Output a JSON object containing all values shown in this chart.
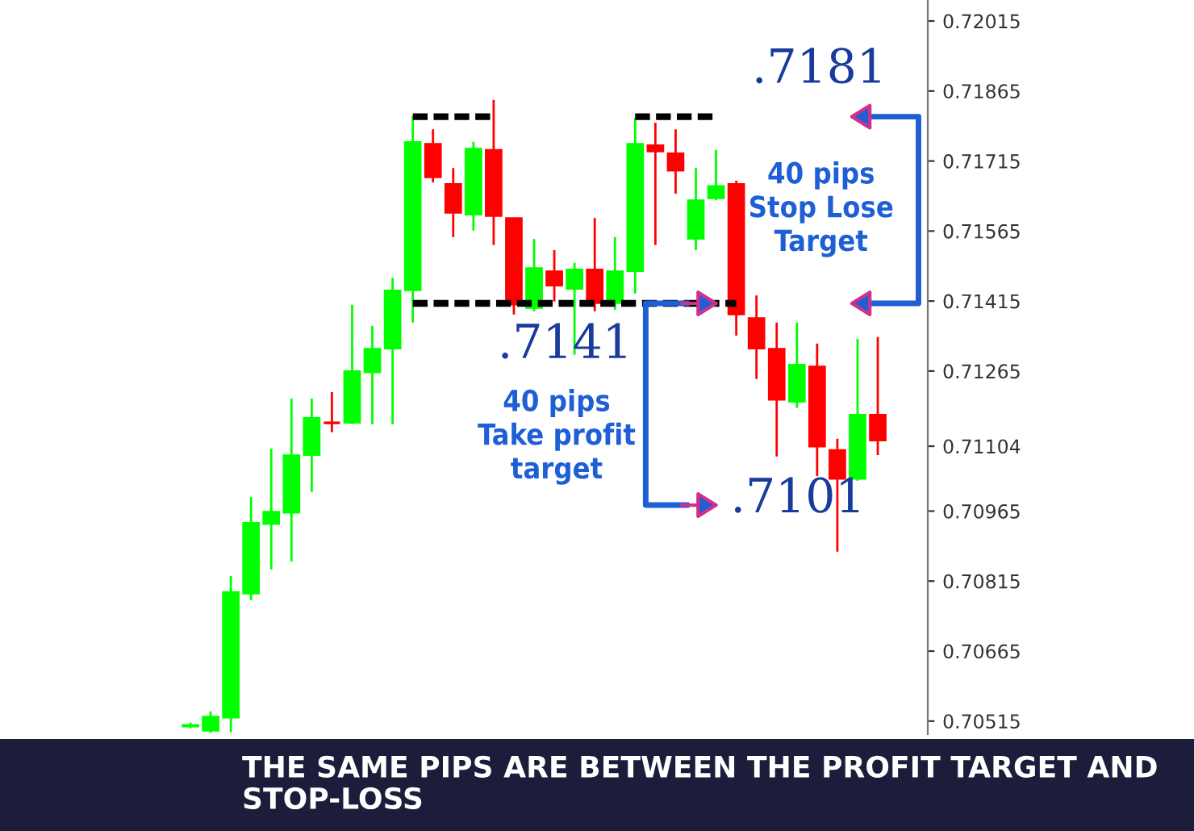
{
  "chart_data": {
    "type": "candlestick",
    "title": "THE SAME PIPS ARE BETWEEN THE PROFIT TARGET AND STOP-LOSS",
    "categories": [
      null,
      null,
      null,
      null,
      null,
      null,
      null,
      null,
      null,
      null,
      null,
      null,
      null,
      null,
      null,
      null,
      null,
      null,
      null,
      null,
      null,
      null,
      null,
      null,
      null,
      null,
      null,
      null,
      null,
      null,
      null,
      null,
      null,
      null,
      null
    ],
    "ohlc": [
      [
        0.70503,
        0.70512,
        0.705,
        0.70507
      ],
      [
        0.70494,
        0.70536,
        0.7049,
        0.70525
      ],
      [
        0.70522,
        0.70826,
        0.70491,
        0.70792
      ],
      [
        0.70788,
        0.70995,
        0.70774,
        0.7094
      ],
      [
        0.70937,
        0.71099,
        0.7084,
        0.70964
      ],
      [
        0.70961,
        0.71206,
        0.70857,
        0.71085
      ],
      [
        0.71085,
        0.71206,
        0.71006,
        0.71165
      ],
      [
        0.71154,
        0.7122,
        0.71134,
        0.71154
      ],
      [
        0.71154,
        0.71407,
        0.71151,
        0.71265
      ],
      [
        0.71262,
        0.71362,
        0.71151,
        0.71313
      ],
      [
        0.71313,
        0.71465,
        0.71151,
        0.71438
      ],
      [
        0.71438,
        0.71811,
        0.71369,
        0.71756
      ],
      [
        0.71752,
        0.71783,
        0.71669,
        0.7168
      ],
      [
        0.71666,
        0.717,
        0.71552,
        0.71604
      ],
      [
        0.716,
        0.71756,
        0.71566,
        0.71742
      ],
      [
        0.71739,
        0.71846,
        0.71535,
        0.71597
      ],
      [
        0.71593,
        0.71593,
        0.71386,
        0.71407
      ],
      [
        0.714,
        0.71548,
        0.71393,
        0.71486
      ],
      [
        0.71479,
        0.71524,
        0.71414,
        0.71448
      ],
      [
        0.71441,
        0.71497,
        0.713,
        0.71483
      ],
      [
        0.71483,
        0.71593,
        0.71393,
        0.7141
      ],
      [
        0.7141,
        0.71552,
        0.71396,
        0.71479
      ],
      [
        0.71479,
        0.71808,
        0.71431,
        0.71752
      ],
      [
        0.71749,
        0.71797,
        0.71535,
        0.71735
      ],
      [
        0.71732,
        0.71783,
        0.71645,
        0.71694
      ],
      [
        0.71548,
        0.717,
        0.71524,
        0.71631
      ],
      [
        0.71635,
        0.71739,
        0.71631,
        0.71662
      ],
      [
        0.71666,
        0.71673,
        0.71341,
        0.71386
      ],
      [
        0.71379,
        0.71427,
        0.71248,
        0.71313
      ],
      [
        0.71313,
        0.71369,
        0.71082,
        0.71203
      ],
      [
        0.71199,
        0.71369,
        0.71186,
        0.71279
      ],
      [
        0.71275,
        0.71324,
        0.7104,
        0.71103
      ],
      [
        0.71096,
        0.7112,
        0.70878,
        0.71034
      ],
      [
        0.71034,
        0.71334,
        0.7103,
        0.71172
      ],
      [
        0.71172,
        0.71338,
        0.71085,
        0.71116
      ]
    ],
    "colors": [
      "#00ff00",
      "#00ff00",
      "#00ff00",
      "#00ff00",
      "#00ff00",
      "#00ff00",
      "#00ff00",
      "#ff0000",
      "#00ff00",
      "#00ff00",
      "#00ff00",
      "#00ff00",
      "#ff0000",
      "#ff0000",
      "#00ff00",
      "#ff0000",
      "#ff0000",
      "#00ff00",
      "#ff0000",
      "#00ff00",
      "#ff0000",
      "#00ff00",
      "#00ff00",
      "#ff0000",
      "#ff0000",
      "#00ff00",
      "#00ff00",
      "#ff0000",
      "#ff0000",
      "#ff0000",
      "#00ff00",
      "#ff0000",
      "#ff0000",
      "#00ff00",
      "#ff0000"
    ],
    "series": [
      {
        "type": "line",
        "color": "#000000",
        "line_style": "dashed",
        "values": [
          null,
          null,
          null,
          null,
          null,
          null,
          null,
          null,
          null,
          null,
          null,
          0.7181,
          0.7181,
          0.7181,
          0.7181,
          0.7181,
          null,
          null,
          null,
          null,
          null,
          null,
          0.7181,
          0.7181,
          0.7181,
          0.7181,
          0.7181,
          null,
          null,
          null,
          null,
          null,
          null,
          null,
          null
        ]
      },
      {
        "type": "line",
        "color": "#000000",
        "line_style": "dashed",
        "values": [
          null,
          null,
          null,
          null,
          null,
          null,
          null,
          null,
          null,
          null,
          null,
          0.7141,
          0.7141,
          0.7141,
          0.7141,
          0.7141,
          0.7141,
          0.7141,
          0.7141,
          0.7141,
          0.7141,
          0.7141,
          0.7141,
          0.7141,
          0.7141,
          0.7141,
          0.7141,
          0.7141,
          null,
          null,
          null,
          null,
          null,
          null,
          null
        ]
      }
    ],
    "ylim": [
      0.70487,
      0.7206
    ],
    "yticks": [
      0.72015,
      0.71865,
      0.71715,
      0.71565,
      0.71415,
      0.71265,
      0.71104,
      0.70965,
      0.70815,
      0.70665,
      0.70515
    ],
    "grid": false,
    "annotations": [
      ".7181",
      ".7141",
      ".7101",
      "40 pips\nStop Lose\nTarget",
      "40 pips\nTake profit\ntarget"
    ]
  }
}
